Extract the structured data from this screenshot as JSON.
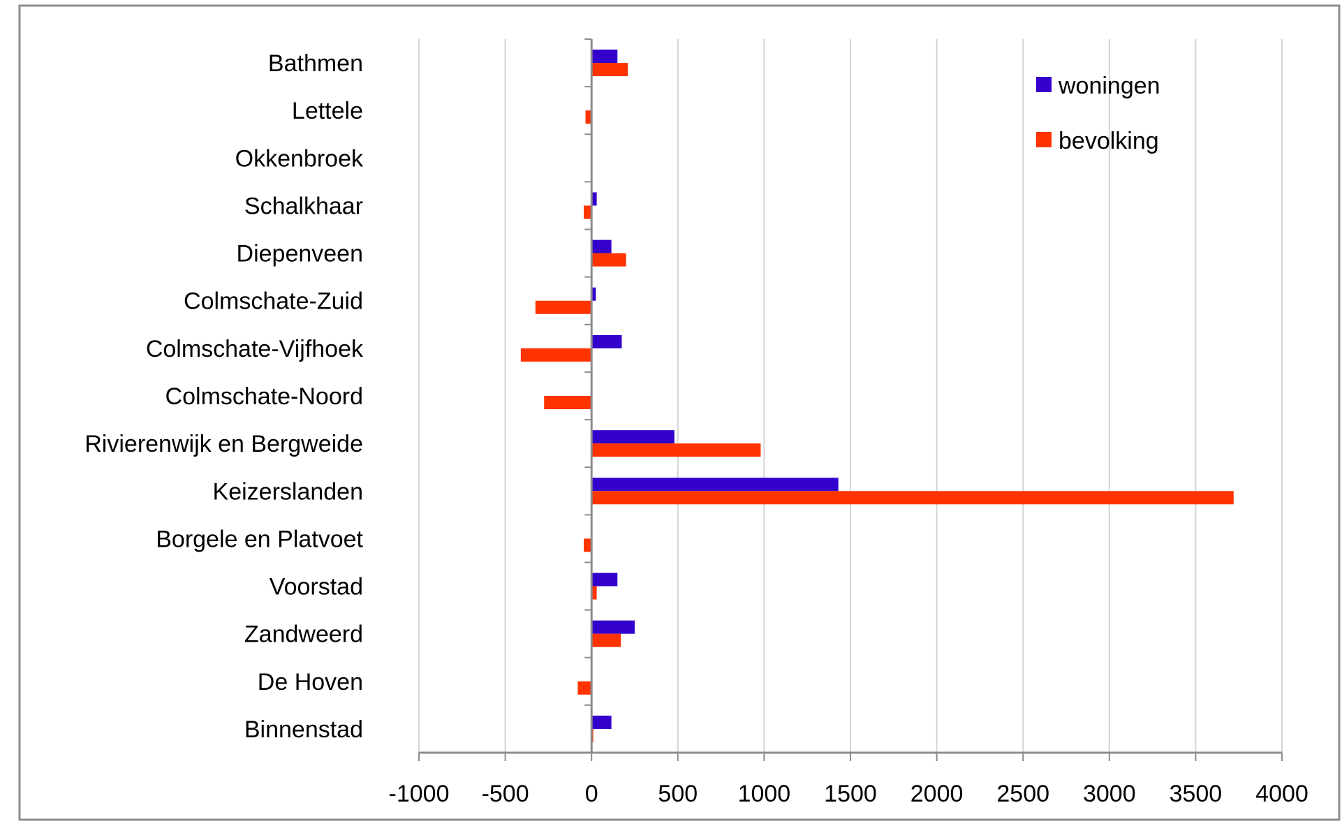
{
  "chart_data": {
    "type": "bar",
    "orientation": "horizontal",
    "categories": [
      "Bathmen",
      "Lettele",
      "Okkenbroek",
      "Schalkhaar",
      "Diepenveen",
      "Colmschate-Zuid",
      "Colmschate-Vijfhoek",
      "Colmschate-Noord",
      "Rivierenwijk en Bergweide",
      "Keizerslanden",
      "Borgele en Platvoet",
      "Voorstad",
      "Zandweerd",
      "De Hoven",
      "Binnenstad"
    ],
    "series": [
      {
        "name": "woningen",
        "color": "#3300cc",
        "values": [
          150,
          0,
          0,
          30,
          115,
          25,
          175,
          0,
          480,
          1430,
          0,
          150,
          250,
          0,
          115
        ]
      },
      {
        "name": "bevolking",
        "color": "#ff3300",
        "values": [
          210,
          -35,
          0,
          -45,
          200,
          -325,
          -410,
          -275,
          980,
          3720,
          -45,
          30,
          170,
          -80,
          10
        ]
      }
    ],
    "xlim": [
      -1000,
      4000
    ],
    "xticks": [
      -1000,
      -500,
      0,
      500,
      1000,
      1500,
      2000,
      2500,
      3000,
      3500,
      4000
    ],
    "xtick_labels": [
      "-1000",
      "-500",
      "0",
      "500",
      "1000",
      "1500",
      "2000",
      "2500",
      "3000",
      "3500",
      "4000"
    ],
    "grid": true,
    "legend_position": "top-right",
    "title": "",
    "xlabel": "",
    "ylabel": ""
  }
}
